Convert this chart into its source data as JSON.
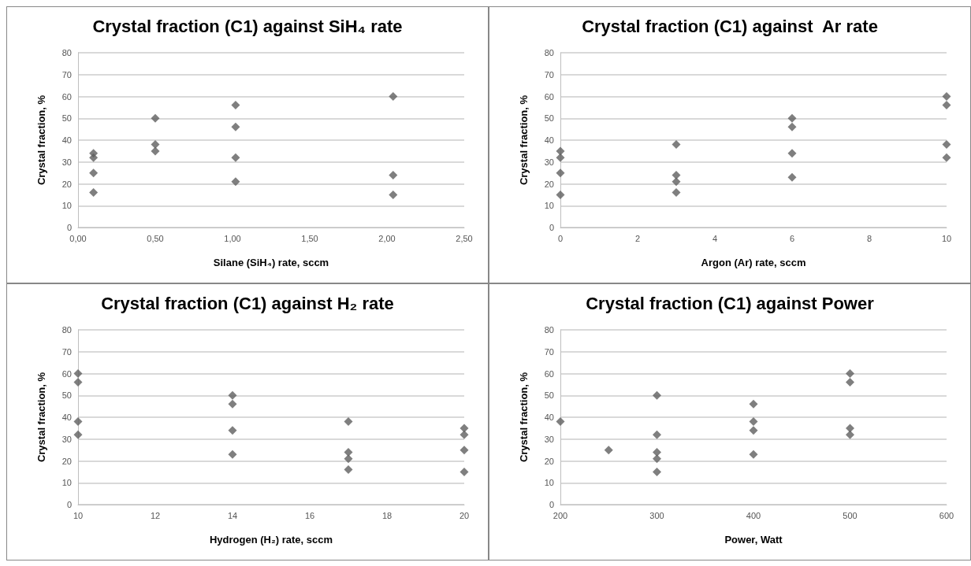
{
  "chart_data": [
    {
      "type": "scatter",
      "title": "Crystal fraction (C1) against SiH₄ rate",
      "xlabel": "Silane (SiH₄) rate, sccm",
      "ylabel": "Crystal fraction, %",
      "color": "#5f5f5f",
      "marker": "diamond",
      "grid": "y",
      "x": [
        0.1,
        0.1,
        0.1,
        0.1,
        0.5,
        0.5,
        0.5,
        1.02,
        1.02,
        1.02,
        1.02,
        2.04,
        2.04,
        2.04
      ],
      "values": [
        34,
        32,
        25,
        16,
        50,
        38,
        35,
        56,
        46,
        32,
        21,
        60,
        24,
        15
      ],
      "xlim": [
        0,
        2.5
      ],
      "xticks": [
        {
          "value": 0,
          "label": "0,00"
        },
        {
          "value": 0.5,
          "label": "0,50"
        },
        {
          "value": 1,
          "label": "1,00"
        },
        {
          "value": 1.5,
          "label": "1,50"
        },
        {
          "value": 2,
          "label": "2,00"
        },
        {
          "value": 2.5,
          "label": "2,50"
        }
      ],
      "ylim": [
        0,
        80
      ],
      "yticks": [
        0,
        10,
        20,
        30,
        40,
        50,
        60,
        70,
        80
      ]
    },
    {
      "type": "scatter",
      "title": "Crystal fraction (C1) against  Ar rate",
      "xlabel": "Argon (Ar) rate, sccm",
      "ylabel": "Crystal fraction, %",
      "color": "#5f5f5f",
      "marker": "diamond",
      "grid": "y",
      "x": [
        0,
        0,
        0,
        0,
        3,
        3,
        3,
        3,
        6,
        6,
        6,
        6,
        10,
        10,
        10,
        10
      ],
      "values": [
        35,
        32,
        25,
        15,
        38,
        24,
        21,
        16,
        50,
        46,
        34,
        23,
        60,
        56,
        38,
        32
      ],
      "xlim": [
        0,
        10
      ],
      "xticks": [
        0,
        2,
        4,
        6,
        8,
        10
      ],
      "ylim": [
        0,
        80
      ],
      "yticks": [
        0,
        10,
        20,
        30,
        40,
        50,
        60,
        70,
        80
      ]
    },
    {
      "type": "scatter",
      "title": "Crystal fraction (C1) against H₂ rate",
      "xlabel": "Hydrogen (H₂) rate, sccm",
      "ylabel": "Crystal fraction, %",
      "color": "#5f5f5f",
      "marker": "diamond",
      "grid": "y",
      "x": [
        10,
        10,
        10,
        10,
        14,
        14,
        14,
        14,
        17,
        17,
        17,
        17,
        20,
        20,
        20,
        20
      ],
      "values": [
        60,
        56,
        38,
        32,
        50,
        46,
        34,
        23,
        38,
        24,
        21,
        16,
        35,
        32,
        25,
        15
      ],
      "xlim": [
        10,
        20
      ],
      "xticks": [
        10,
        12,
        14,
        16,
        18,
        20
      ],
      "ylim": [
        0,
        80
      ],
      "yticks": [
        0,
        10,
        20,
        30,
        40,
        50,
        60,
        70,
        80
      ]
    },
    {
      "type": "scatter",
      "title": "Crystal fraction (C1) against Power",
      "xlabel": "Power, Watt",
      "ylabel": "Crystal fraction, %",
      "color": "#5f5f5f",
      "marker": "diamond",
      "grid": "y",
      "x": [
        200,
        250,
        300,
        300,
        300,
        300,
        300,
        400,
        400,
        400,
        400,
        500,
        500,
        500,
        500
      ],
      "values": [
        38,
        25,
        50,
        32,
        24,
        21,
        15,
        46,
        38,
        34,
        23,
        60,
        56,
        35,
        32
      ],
      "xlim": [
        200,
        600
      ],
      "xticks": [
        200,
        300,
        400,
        500,
        600
      ],
      "ylim": [
        0,
        80
      ],
      "yticks": [
        0,
        10,
        20,
        30,
        40,
        50,
        60,
        70,
        80
      ]
    }
  ]
}
